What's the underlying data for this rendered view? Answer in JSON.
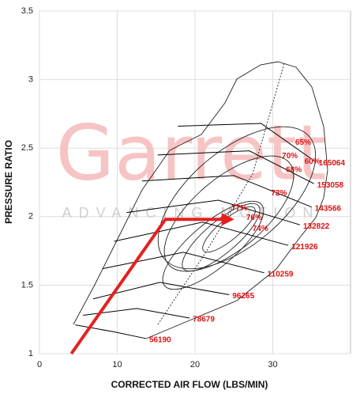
{
  "chart_data": {
    "type": "line",
    "x_label": "CORRECTED AIR FLOW (LBS/MIN)",
    "y_label": "PRESSURE RATIO",
    "xlim": [
      0,
      40
    ],
    "ylim": [
      1,
      3.5
    ],
    "xticks": [
      0,
      10,
      20,
      30
    ],
    "yticks": [
      1,
      1.5,
      2,
      2.5,
      3,
      3.5
    ],
    "grid": true,
    "watermark": "Garrett",
    "watermark_tagline": "ADVANCING MOTION",
    "series": [
      {
        "name": "56190",
        "color": "#000000",
        "x": [
          4.6,
          9.5,
          13.7
        ],
        "values": [
          1.21,
          1.16,
          1.11
        ]
      },
      {
        "name": "78679",
        "color": "#000000",
        "x": [
          5.6,
          12.5,
          19.3
        ],
        "values": [
          1.28,
          1.33,
          1.26
        ]
      },
      {
        "name": "96265",
        "color": "#000000",
        "x": [
          6.9,
          15.5,
          24.4
        ],
        "values": [
          1.4,
          1.52,
          1.43
        ]
      },
      {
        "name": "110259",
        "color": "#000000",
        "x": [
          8.1,
          18.5,
          28.9
        ],
        "values": [
          1.62,
          1.74,
          1.59
        ]
      },
      {
        "name": "121926",
        "color": "#000000",
        "x": [
          9.6,
          21.0,
          32.0
        ],
        "values": [
          1.82,
          1.96,
          1.79
        ]
      },
      {
        "name": "132822",
        "color": "#000000",
        "x": [
          11.2,
          23.0,
          33.5
        ],
        "values": [
          2.03,
          2.12,
          1.94
        ]
      },
      {
        "name": "143566",
        "color": "#000000",
        "x": [
          13.2,
          25.0,
          35.0
        ],
        "values": [
          2.26,
          2.3,
          2.07
        ]
      },
      {
        "name": "153058",
        "color": "#000000",
        "x": [
          15.2,
          27.0,
          35.3
        ],
        "values": [
          2.45,
          2.48,
          2.24
        ]
      },
      {
        "name": "165064",
        "color": "#000000",
        "x": [
          17.8,
          28.5,
          35.5
        ],
        "values": [
          2.66,
          2.68,
          2.4
        ]
      }
    ],
    "efficiency_labels": [
      {
        "text": "77%",
        "x": 25.7,
        "y": 2.06
      },
      {
        "text": "76%",
        "x": 27.6,
        "y": 1.99
      },
      {
        "text": "74%",
        "x": 28.4,
        "y": 1.91
      },
      {
        "text": "72%",
        "x": 30.8,
        "y": 2.17
      },
      {
        "text": "68%",
        "x": 32.7,
        "y": 2.34
      },
      {
        "text": "70%",
        "x": 32.2,
        "y": 2.44
      },
      {
        "text": "60%",
        "x": 35.1,
        "y": 2.4
      },
      {
        "text": "65%",
        "x": 33.9,
        "y": 2.54
      }
    ],
    "operating_line": {
      "color": "#e52020",
      "x": [
        4.1,
        16.2,
        24.4
      ],
      "values": [
        1.0,
        1.98,
        1.98
      ]
    }
  }
}
